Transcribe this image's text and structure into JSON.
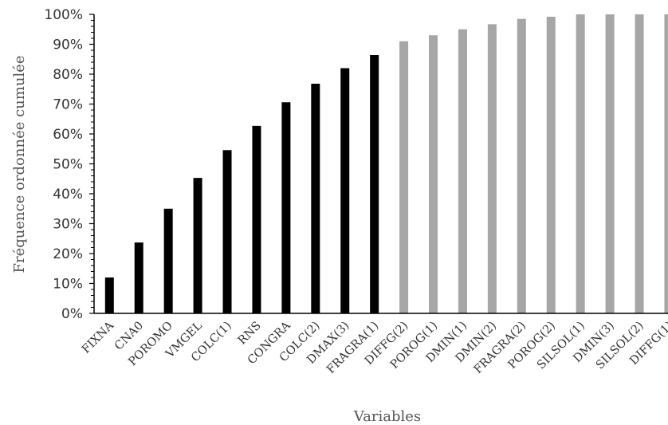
{
  "chart_data": {
    "type": "bar",
    "title": "",
    "xlabel": "Variables",
    "ylabel": "Fréquence ordonnée cumulée",
    "ylim": [
      0,
      100
    ],
    "yticks": [
      "0%",
      "10%",
      "20%",
      "30%",
      "40%",
      "50%",
      "60%",
      "70%",
      "80%",
      "90%",
      "100%"
    ],
    "grid": false,
    "legend": "none",
    "categories": [
      "FIXNA",
      "CNA0",
      "POROMO",
      "VMGEL",
      "COLC(1)",
      "RNS",
      "CONGRA",
      "COLC(2)",
      "DMAX(3)",
      "FRAGRA(1)",
      "DIFFG(2)",
      "POROG(1)",
      "DMIN(1)",
      "DMIN(2)",
      "FRAGRA(2)",
      "POROG(2)",
      "SILSOL(1)",
      "DMIN(3)",
      "SILSOL(2)",
      "DIFFG(1)"
    ],
    "values": [
      12,
      23.7,
      35,
      45.3,
      54.6,
      62.7,
      70.6,
      76.8,
      82,
      86.4,
      91,
      93,
      95,
      96.7,
      98.5,
      99.2,
      100,
      100,
      100,
      100
    ],
    "colors": {
      "primary": "#000000",
      "secondary": "#a6a6a6",
      "axis": "#000000"
    },
    "secondary_from_index": 10
  }
}
